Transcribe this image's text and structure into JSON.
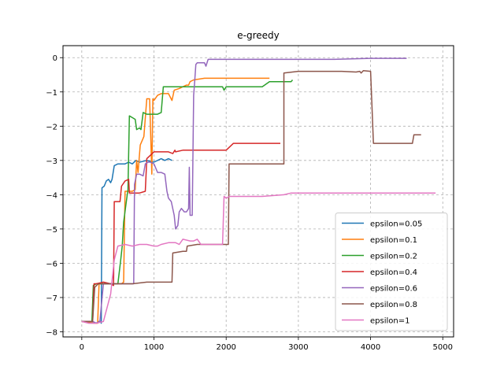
{
  "chart_data": {
    "type": "line",
    "title": "e-greedy",
    "xlabel": "",
    "ylabel": "",
    "xlim": [
      -260,
      5150
    ],
    "ylim": [
      -8.15,
      0.35
    ],
    "xticks": [
      0,
      1000,
      2000,
      3000,
      4000,
      5000
    ],
    "yticks": [
      0,
      -1,
      -2,
      -3,
      -4,
      -5,
      -6,
      -7,
      -8
    ],
    "grid": true,
    "legend_position": "lower-right",
    "series": [
      {
        "name": "epsilon=0.05",
        "color": "#1f77b4",
        "points": [
          [
            0,
            -7.7
          ],
          [
            150,
            -7.7
          ],
          [
            200,
            -7.75
          ],
          [
            230,
            -7.7
          ],
          [
            260,
            -7.7
          ],
          [
            270,
            -7.75
          ],
          [
            280,
            -3.8
          ],
          [
            310,
            -3.75
          ],
          [
            340,
            -3.6
          ],
          [
            370,
            -3.55
          ],
          [
            400,
            -3.65
          ],
          [
            420,
            -3.55
          ],
          [
            450,
            -3.15
          ],
          [
            500,
            -3.1
          ],
          [
            600,
            -3.1
          ],
          [
            650,
            -3.05
          ],
          [
            700,
            -3.1
          ],
          [
            750,
            -3.0
          ],
          [
            800,
            -3.05
          ],
          [
            900,
            -3.0
          ],
          [
            1000,
            -3.05
          ],
          [
            1100,
            -2.95
          ],
          [
            1150,
            -3.0
          ],
          [
            1200,
            -2.95
          ],
          [
            1250,
            -3.0
          ]
        ]
      },
      {
        "name": "epsilon=0.1",
        "color": "#ff7f0e",
        "points": [
          [
            0,
            -7.7
          ],
          [
            180,
            -7.75
          ],
          [
            220,
            -7.75
          ],
          [
            240,
            -6.6
          ],
          [
            400,
            -6.6
          ],
          [
            550,
            -6.6
          ],
          [
            580,
            -6.55
          ],
          [
            600,
            -3.9
          ],
          [
            700,
            -3.9
          ],
          [
            740,
            -3.85
          ],
          [
            760,
            -3.0
          ],
          [
            780,
            -3.35
          ],
          [
            810,
            -2.55
          ],
          [
            840,
            -2.4
          ],
          [
            860,
            -2.3
          ],
          [
            900,
            -1.2
          ],
          [
            940,
            -1.2
          ],
          [
            970,
            -3.4
          ],
          [
            985,
            -1.2
          ],
          [
            1000,
            -1.25
          ],
          [
            1050,
            -1.1
          ],
          [
            1100,
            -1.05
          ],
          [
            1200,
            -1.05
          ],
          [
            1250,
            -1.25
          ],
          [
            1280,
            -0.95
          ],
          [
            1350,
            -0.9
          ],
          [
            1400,
            -0.85
          ],
          [
            1450,
            -0.8
          ],
          [
            1480,
            -0.8
          ],
          [
            1500,
            -0.7
          ],
          [
            1550,
            -0.65
          ],
          [
            1700,
            -0.6
          ],
          [
            2000,
            -0.6
          ],
          [
            2300,
            -0.6
          ],
          [
            2600,
            -0.6
          ]
        ]
      },
      {
        "name": "epsilon=0.2",
        "color": "#2ca02c",
        "points": [
          [
            0,
            -7.7
          ],
          [
            140,
            -7.7
          ],
          [
            160,
            -6.65
          ],
          [
            200,
            -6.6
          ],
          [
            300,
            -6.6
          ],
          [
            500,
            -6.6
          ],
          [
            540,
            -5.9
          ],
          [
            560,
            -5.5
          ],
          [
            580,
            -4.8
          ],
          [
            620,
            -4.15
          ],
          [
            640,
            -3.85
          ],
          [
            660,
            -1.7
          ],
          [
            700,
            -1.75
          ],
          [
            740,
            -1.8
          ],
          [
            760,
            -2.1
          ],
          [
            800,
            -2.05
          ],
          [
            820,
            -2.1
          ],
          [
            850,
            -1.6
          ],
          [
            900,
            -1.65
          ],
          [
            1000,
            -1.65
          ],
          [
            1050,
            -1.65
          ],
          [
            1100,
            -1.6
          ],
          [
            1130,
            -0.85
          ],
          [
            1200,
            -0.85
          ],
          [
            1300,
            -0.85
          ],
          [
            1500,
            -0.85
          ],
          [
            1800,
            -0.85
          ],
          [
            1950,
            -0.85
          ],
          [
            1970,
            -0.95
          ],
          [
            2000,
            -0.85
          ],
          [
            2200,
            -0.85
          ],
          [
            2500,
            -0.85
          ],
          [
            2600,
            -0.7
          ],
          [
            2900,
            -0.7
          ],
          [
            2920,
            -0.65
          ]
        ]
      },
      {
        "name": "epsilon=0.4",
        "color": "#d62728",
        "points": [
          [
            0,
            -7.7
          ],
          [
            150,
            -7.7
          ],
          [
            170,
            -6.6
          ],
          [
            200,
            -6.6
          ],
          [
            300,
            -6.55
          ],
          [
            400,
            -6.6
          ],
          [
            440,
            -6.65
          ],
          [
            450,
            -4.2
          ],
          [
            500,
            -4.2
          ],
          [
            530,
            -4.2
          ],
          [
            550,
            -3.75
          ],
          [
            600,
            -3.6
          ],
          [
            650,
            -3.55
          ],
          [
            660,
            -3.95
          ],
          [
            700,
            -3.95
          ],
          [
            800,
            -3.95
          ],
          [
            880,
            -3.9
          ],
          [
            900,
            -2.95
          ],
          [
            950,
            -2.85
          ],
          [
            1000,
            -2.75
          ],
          [
            1100,
            -2.75
          ],
          [
            1200,
            -2.75
          ],
          [
            1260,
            -2.8
          ],
          [
            1290,
            -2.7
          ],
          [
            1300,
            -2.75
          ],
          [
            1400,
            -2.7
          ],
          [
            1600,
            -2.7
          ],
          [
            1800,
            -2.7
          ],
          [
            2000,
            -2.7
          ],
          [
            2100,
            -2.5
          ],
          [
            2300,
            -2.5
          ],
          [
            2500,
            -2.5
          ],
          [
            2750,
            -2.5
          ]
        ]
      },
      {
        "name": "epsilon=0.6",
        "color": "#9467bd",
        "points": [
          [
            0,
            -7.7
          ],
          [
            150,
            -7.7
          ],
          [
            200,
            -7.75
          ],
          [
            250,
            -7.7
          ],
          [
            300,
            -6.6
          ],
          [
            400,
            -6.6
          ],
          [
            500,
            -6.6
          ],
          [
            650,
            -6.6
          ],
          [
            700,
            -6.6
          ],
          [
            720,
            -6.6
          ],
          [
            730,
            -3.7
          ],
          [
            760,
            -3.4
          ],
          [
            800,
            -3.4
          ],
          [
            850,
            -3.45
          ],
          [
            880,
            -3.1
          ],
          [
            920,
            -3.05
          ],
          [
            950,
            -3.05
          ],
          [
            1000,
            -3.1
          ],
          [
            1050,
            -3.35
          ],
          [
            1100,
            -3.35
          ],
          [
            1150,
            -3.4
          ],
          [
            1180,
            -3.9
          ],
          [
            1200,
            -4.1
          ],
          [
            1240,
            -4.2
          ],
          [
            1280,
            -4.6
          ],
          [
            1300,
            -5.0
          ],
          [
            1330,
            -4.9
          ],
          [
            1350,
            -4.5
          ],
          [
            1380,
            -4.4
          ],
          [
            1420,
            -4.5
          ],
          [
            1450,
            -4.5
          ],
          [
            1480,
            -4.4
          ],
          [
            1490,
            -3.2
          ],
          [
            1500,
            -4.6
          ],
          [
            1510,
            -4.6
          ],
          [
            1530,
            -4.6
          ],
          [
            1550,
            -1.1
          ],
          [
            1560,
            -0.8
          ],
          [
            1580,
            -0.2
          ],
          [
            1600,
            -0.15
          ],
          [
            1700,
            -0.15
          ],
          [
            1720,
            -0.25
          ],
          [
            1750,
            -0.05
          ],
          [
            2000,
            -0.05
          ],
          [
            2500,
            -0.05
          ],
          [
            3000,
            -0.05
          ],
          [
            3500,
            -0.05
          ],
          [
            4000,
            -0.02
          ],
          [
            4500,
            -0.02
          ]
        ]
      },
      {
        "name": "epsilon=0.8",
        "color": "#8c564b",
        "points": [
          [
            0,
            -7.7
          ],
          [
            150,
            -7.7
          ],
          [
            180,
            -6.7
          ],
          [
            230,
            -6.6
          ],
          [
            400,
            -6.6
          ],
          [
            700,
            -6.6
          ],
          [
            900,
            -6.55
          ],
          [
            1000,
            -6.55
          ],
          [
            1050,
            -6.55
          ],
          [
            1100,
            -6.55
          ],
          [
            1250,
            -6.55
          ],
          [
            1260,
            -5.7
          ],
          [
            1400,
            -5.65
          ],
          [
            1450,
            -5.65
          ],
          [
            1460,
            -5.5
          ],
          [
            1600,
            -5.45
          ],
          [
            1800,
            -5.45
          ],
          [
            2000,
            -5.45
          ],
          [
            2030,
            -5.45
          ],
          [
            2040,
            -3.1
          ],
          [
            2200,
            -3.1
          ],
          [
            2400,
            -3.1
          ],
          [
            2600,
            -3.1
          ],
          [
            2800,
            -3.1
          ],
          [
            2800,
            -0.45
          ],
          [
            3000,
            -0.4
          ],
          [
            3200,
            -0.4
          ],
          [
            3400,
            -0.4
          ],
          [
            3600,
            -0.4
          ],
          [
            3800,
            -0.42
          ],
          [
            3850,
            -0.4
          ],
          [
            3870,
            -0.45
          ],
          [
            3900,
            -0.38
          ],
          [
            4000,
            -0.4
          ],
          [
            4040,
            -2.5
          ],
          [
            4200,
            -2.5
          ],
          [
            4400,
            -2.5
          ],
          [
            4580,
            -2.5
          ],
          [
            4600,
            -2.25
          ],
          [
            4700,
            -2.25
          ]
        ]
      },
      {
        "name": "epsilon=1",
        "color": "#e377c2",
        "points": [
          [
            0,
            -7.7
          ],
          [
            100,
            -7.75
          ],
          [
            200,
            -7.75
          ],
          [
            300,
            -7.7
          ],
          [
            400,
            -6.9
          ],
          [
            450,
            -5.9
          ],
          [
            500,
            -5.5
          ],
          [
            600,
            -5.45
          ],
          [
            700,
            -5.5
          ],
          [
            800,
            -5.45
          ],
          [
            900,
            -5.45
          ],
          [
            1000,
            -5.5
          ],
          [
            1050,
            -5.5
          ],
          [
            1100,
            -5.45
          ],
          [
            1200,
            -5.4
          ],
          [
            1300,
            -5.4
          ],
          [
            1350,
            -5.45
          ],
          [
            1400,
            -5.3
          ],
          [
            1500,
            -5.35
          ],
          [
            1550,
            -5.35
          ],
          [
            1600,
            -5.3
          ],
          [
            1650,
            -5.45
          ],
          [
            1800,
            -5.45
          ],
          [
            1950,
            -5.45
          ],
          [
            1970,
            -4.05
          ],
          [
            2000,
            -4.1
          ],
          [
            2050,
            -4.05
          ],
          [
            2100,
            -4.05
          ],
          [
            2500,
            -4.05
          ],
          [
            2800,
            -4.0
          ],
          [
            2900,
            -3.95
          ],
          [
            3000,
            -3.95
          ],
          [
            4000,
            -3.95
          ],
          [
            4500,
            -3.95
          ],
          [
            4900,
            -3.95
          ]
        ]
      }
    ]
  }
}
